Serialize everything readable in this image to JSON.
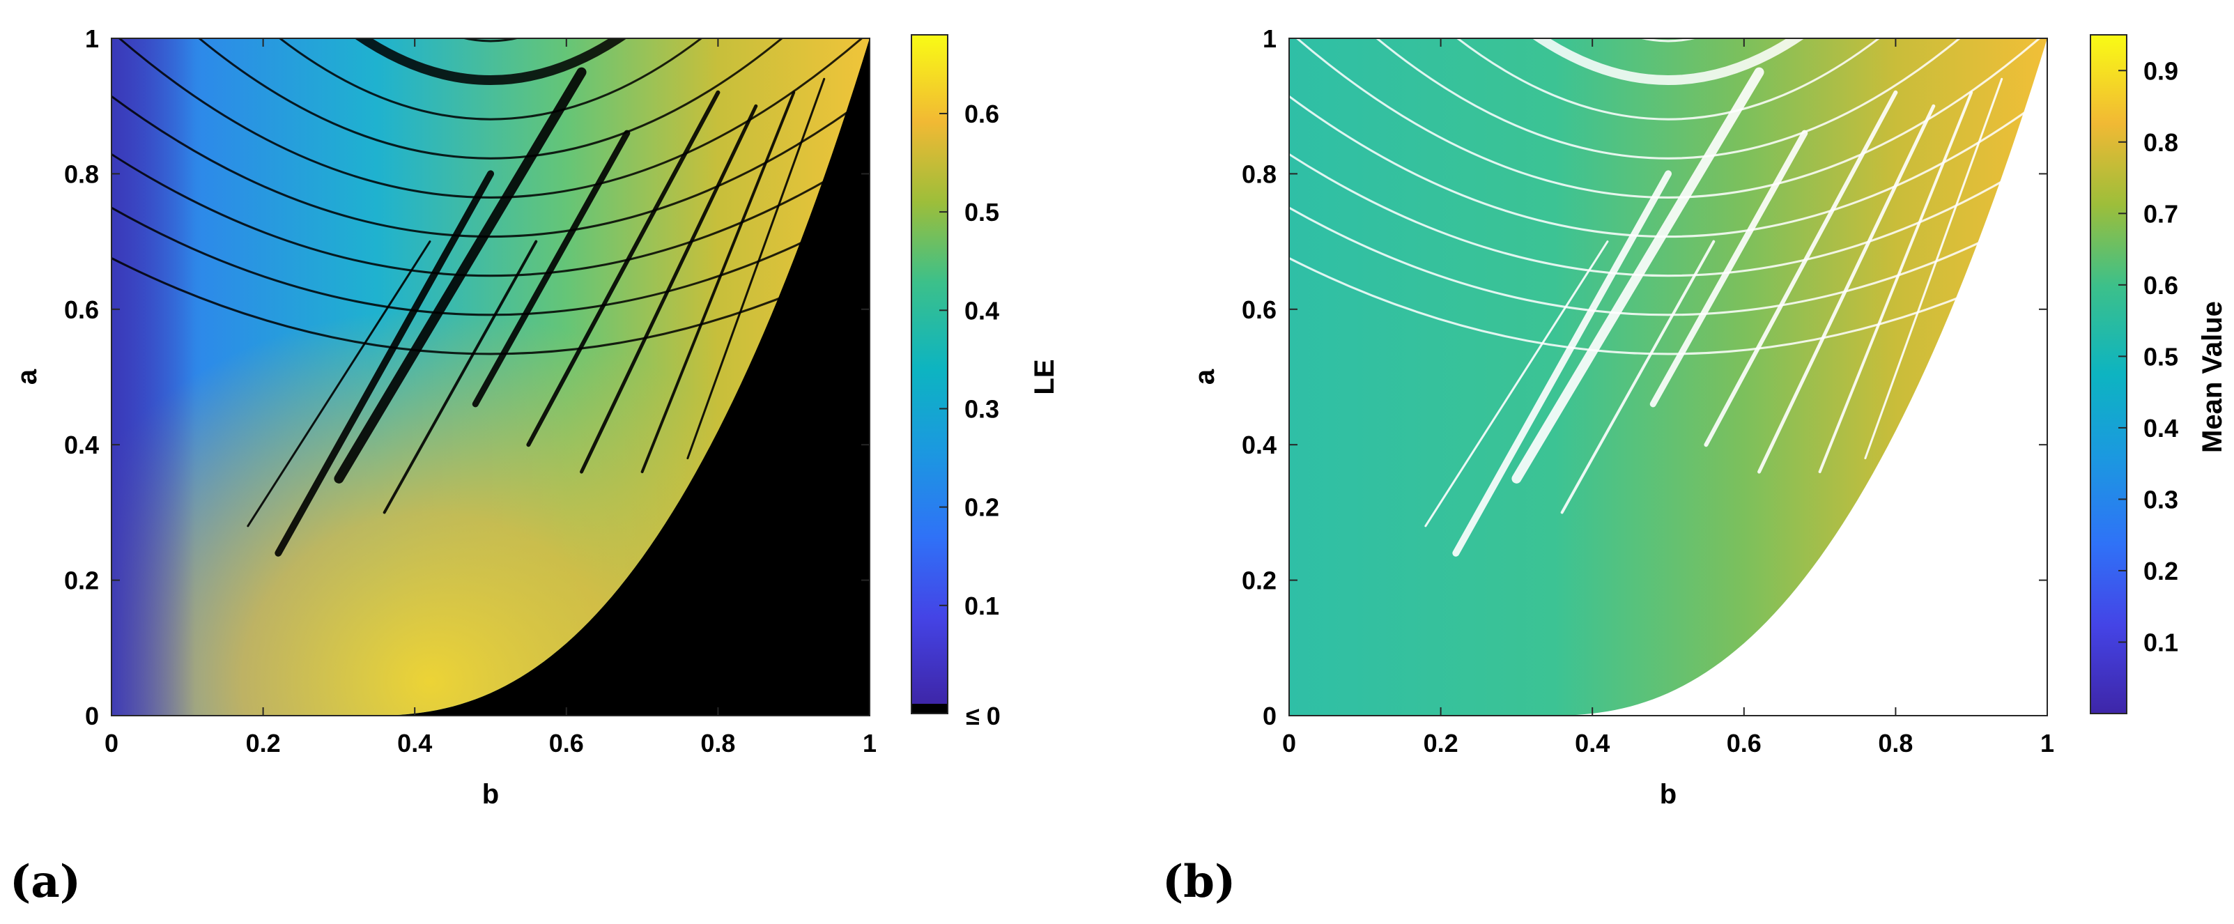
{
  "chart_data": [
    {
      "type": "heatmap",
      "panel_label": "(a)",
      "title": "",
      "xlabel": "b",
      "ylabel": "a",
      "xlim": [
        0,
        1
      ],
      "ylim": [
        0,
        1
      ],
      "xticks": [
        "0",
        "0.2",
        "0.4",
        "0.6",
        "0.8",
        "1"
      ],
      "yticks": [
        "0",
        "0.2",
        "0.4",
        "0.6",
        "0.8",
        "1"
      ],
      "colorbar": {
        "label": "LE",
        "range": [
          0,
          0.68
        ],
        "ticks": [
          "0.1",
          "0.2",
          "0.3",
          "0.4",
          "0.5",
          "0.6"
        ],
        "tick_values": [
          0.1,
          0.2,
          0.3,
          0.4,
          0.5,
          0.6
        ],
        "min_label": "≤ 0",
        "min_color": "#000000"
      },
      "regions": [
        {
          "description": "chaotic region bounded below by parabola-like curve a ≈ ((b-0.34)/0.66)^2.4",
          "value_range": [
            0.05,
            0.65
          ]
        },
        {
          "description": "regular (LE ≤ 0) region to lower right",
          "value": 0
        }
      ]
    },
    {
      "type": "heatmap",
      "panel_label": "(b)",
      "title": "",
      "xlabel": "b",
      "ylabel": "a",
      "xlim": [
        0,
        1
      ],
      "ylim": [
        0,
        1
      ],
      "xticks": [
        "0",
        "0.2",
        "0.4",
        "0.6",
        "0.8",
        "1"
      ],
      "yticks": [
        "0",
        "0.2",
        "0.4",
        "0.6",
        "0.8",
        "1"
      ],
      "colorbar": {
        "label": "Mean Value",
        "range": [
          0,
          0.95
        ],
        "ticks": [
          "0.1",
          "0.2",
          "0.3",
          "0.4",
          "0.5",
          "0.6",
          "0.7",
          "0.8",
          "0.9"
        ],
        "tick_values": [
          0.1,
          0.2,
          0.3,
          0.4,
          0.5,
          0.6,
          0.7,
          0.8,
          0.9
        ]
      },
      "regions": [
        {
          "description": "mean value increases with b from ~0.5 to ~0.9",
          "value_range": [
            0.45,
            0.92
          ]
        },
        {
          "description": "undefined (white) region to lower right and in periodic windows"
        }
      ]
    }
  ]
}
